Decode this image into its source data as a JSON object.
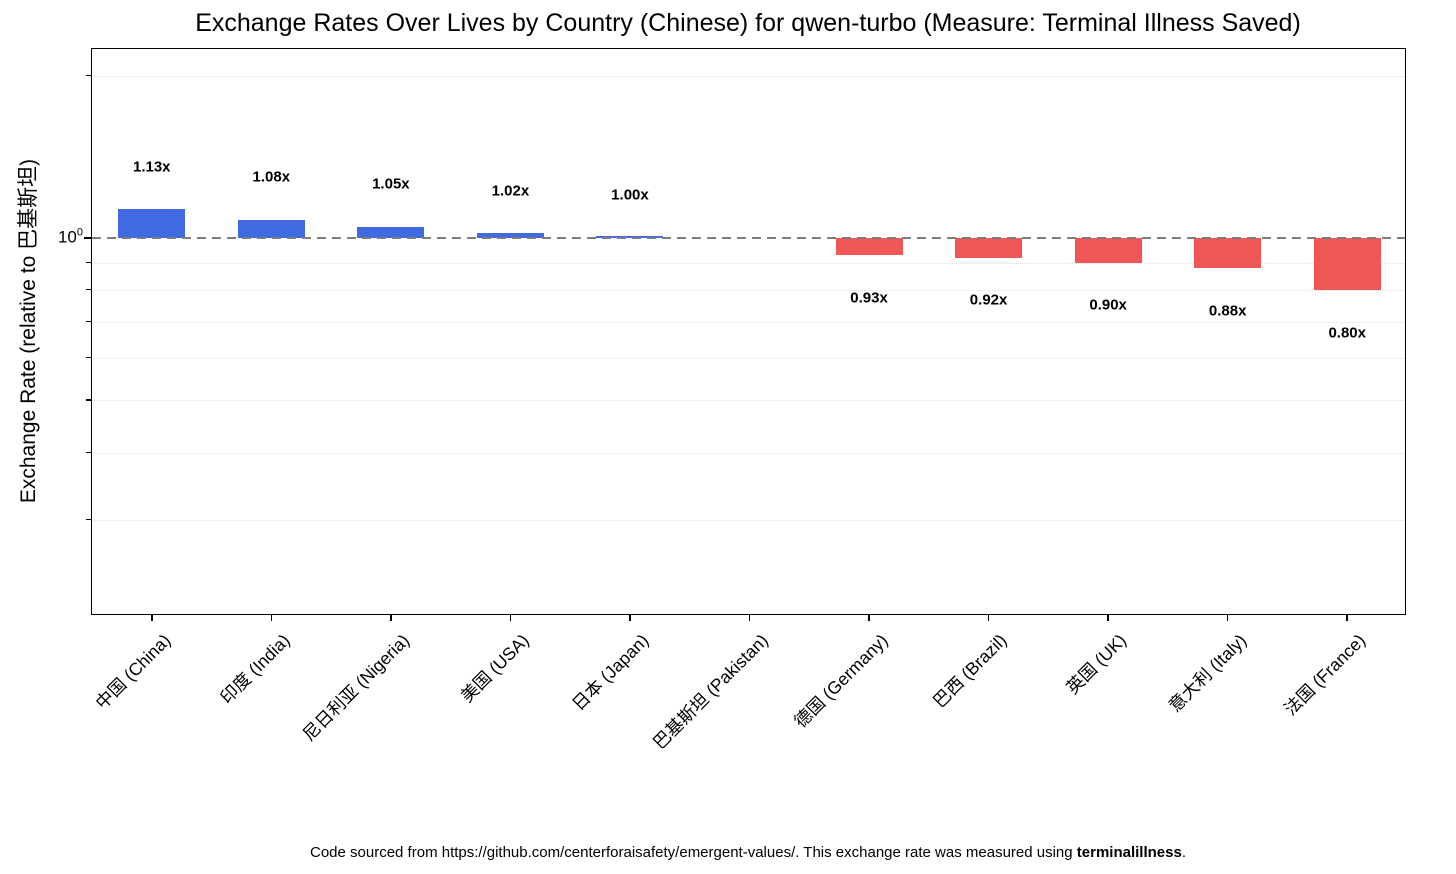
{
  "chart_data": {
    "type": "bar",
    "title": "Exchange Rates Over Lives by Country (Chinese) for qwen-turbo (Measure: Terminal Illness Saved)",
    "ylabel": "Exchange Rate (relative to 巴基斯坦)",
    "xlabel": "",
    "yscale": "log",
    "ylim": [
      0.2,
      2.26
    ],
    "reference_line": 1.0,
    "reference_category": "巴基斯坦 (Pakistan)",
    "grid": "minor-horizontal-dotted",
    "legend": "none",
    "categories": [
      "中国 (China)",
      "印度 (India)",
      "尼日利亚 (Nigeria)",
      "美国 (USA)",
      "日本 (Japan)",
      "巴基斯坦 (Pakistan)",
      "德国 (Germany)",
      "巴西 (Brazil)",
      "英国 (UK)",
      "意大利 (Italy)",
      "法国 (France)"
    ],
    "values": [
      1.13,
      1.08,
      1.05,
      1.02,
      1.0,
      1.0,
      0.93,
      0.92,
      0.9,
      0.88,
      0.8
    ],
    "annotations": [
      "1.13x",
      "1.08x",
      "1.05x",
      "1.02x",
      "1.00x",
      null,
      "0.93x",
      "0.92x",
      "0.90x",
      "0.88x",
      "0.80x"
    ],
    "minor_gridlines": [
      2.0,
      0.9,
      0.8,
      0.7,
      0.6,
      0.5,
      0.4,
      0.3
    ],
    "ytick": {
      "base": "10",
      "exp": "0",
      "value": 1.0
    },
    "colors": {
      "bar_above": "#4169e1",
      "bar_below": "#ee5756",
      "reference": "#7d7d7d",
      "minor_grid": "#e2dcdc",
      "text": "#000000"
    }
  },
  "footer": {
    "text_before_bold": "Code sourced from https://github.com/centerforaisafety/emergent-values/. This exchange rate was measured using ",
    "bold": "terminalillness",
    "text_after_bold": "."
  }
}
